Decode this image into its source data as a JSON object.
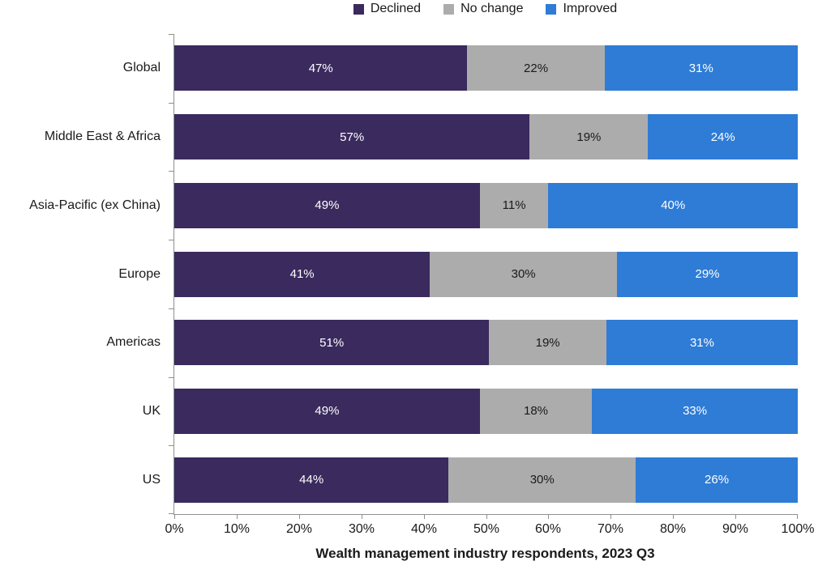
{
  "chart_data": {
    "type": "bar",
    "variant": "horizontal-stacked",
    "title": "",
    "xlabel": "Wealth management industry respondents, 2023 Q3",
    "ylabel": "",
    "xlim": [
      0,
      100
    ],
    "grid": false,
    "legend_position": "top",
    "value_suffix": "%",
    "categories": [
      "Global",
      "Middle East & Africa",
      "Asia-Pacific (ex China)",
      "Europe",
      "Americas",
      "UK",
      "US"
    ],
    "series": [
      {
        "name": "Declined",
        "color": "#3A2A5E",
        "label_color": "#FFFFFF",
        "values": [
          47,
          57,
          49,
          41,
          51,
          49,
          44
        ]
      },
      {
        "name": "No change",
        "color": "#ACACAC",
        "label_color": "#1A1A1A",
        "values": [
          22,
          19,
          11,
          30,
          19,
          18,
          30
        ]
      },
      {
        "name": "Improved",
        "color": "#2E7CD6",
        "label_color": "#FFFFFF",
        "values": [
          31,
          24,
          40,
          29,
          31,
          33,
          26
        ]
      }
    ],
    "x_ticks": [
      "0%",
      "10%",
      "20%",
      "30%",
      "40%",
      "50%",
      "60%",
      "70%",
      "80%",
      "90%",
      "100%"
    ],
    "axis_color": "#8F8F8F"
  }
}
